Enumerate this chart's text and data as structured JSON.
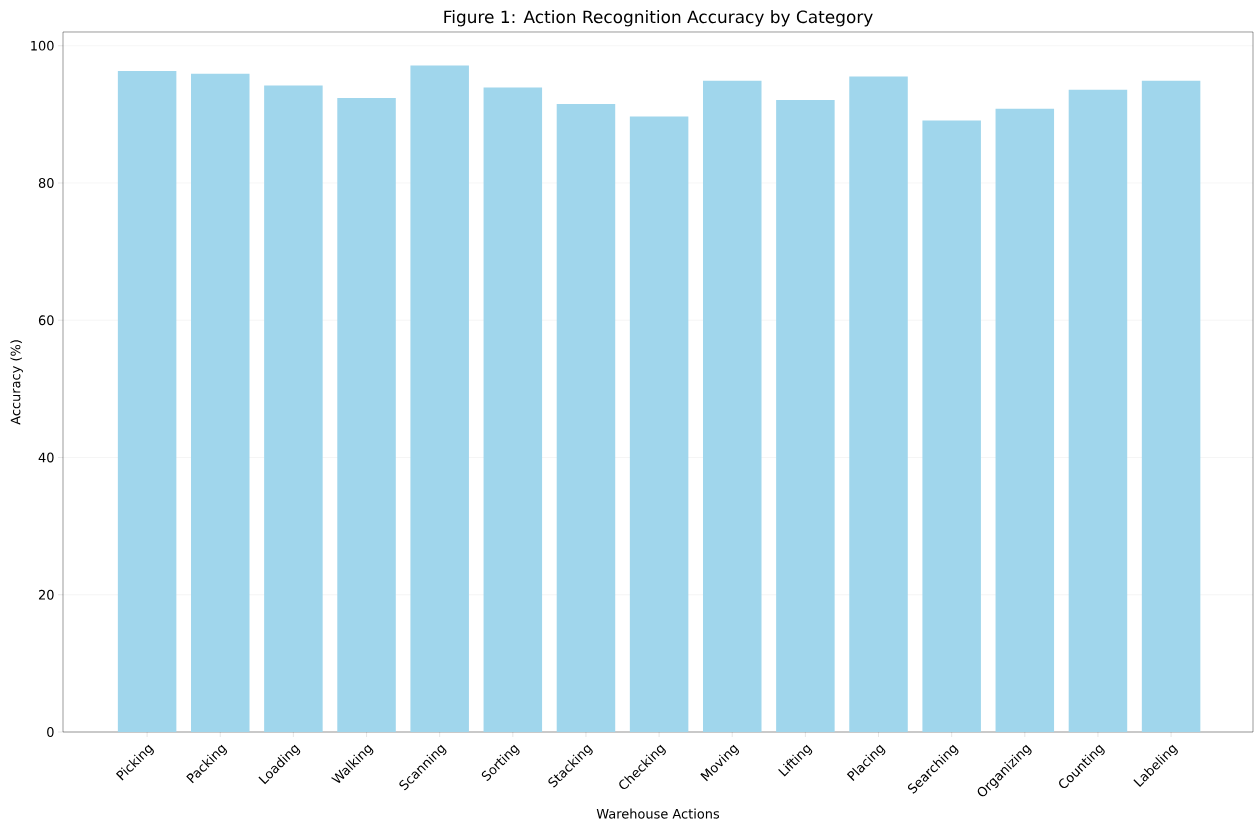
{
  "chart_data": {
    "type": "bar",
    "title": "Figure 1: Action Recognition Accuracy by Category",
    "xlabel": "Warehouse Actions",
    "ylabel": "Accuracy (%)",
    "categories": [
      "Picking",
      "Packing",
      "Loading",
      "Walking",
      "Scanning",
      "Sorting",
      "Stacking",
      "Checking",
      "Moving",
      "Lifting",
      "Placing",
      "Searching",
      "Organizing",
      "Counting",
      "Labeling"
    ],
    "values": [
      96.3,
      95.9,
      94.2,
      92.4,
      97.1,
      93.9,
      91.5,
      89.7,
      94.9,
      92.1,
      95.5,
      89.1,
      90.8,
      93.6,
      94.9
    ],
    "color": "#a0d6ec",
    "ylim": [
      0,
      102
    ],
    "yticks": [
      0,
      20,
      40,
      60,
      80,
      100
    ],
    "grid": "y"
  }
}
